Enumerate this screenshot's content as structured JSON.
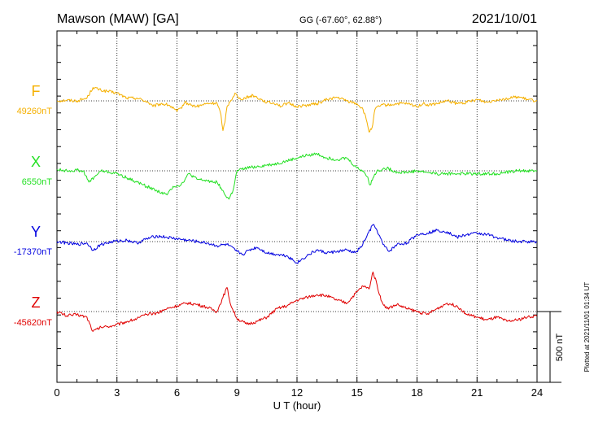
{
  "header": {
    "title": "Mawson (MAW)  [GA]",
    "coords": "GG (-67.60°,  62.88°)",
    "date": "2021/10/01"
  },
  "footer": {
    "plotted": "Plotted at 2021/11/01 01:34 UT"
  },
  "chart_data": {
    "type": "line",
    "title": "Mawson (MAW)  [GA]",
    "xlabel": "U T (hour)",
    "xlim": [
      0,
      24
    ],
    "xticks": [
      0,
      3,
      6,
      9,
      12,
      15,
      18,
      21,
      24
    ],
    "xtick_labels": [
      "0",
      "3",
      "6",
      "9",
      "12",
      "15",
      "18",
      "21",
      "24"
    ],
    "grid": true,
    "scale_bar": {
      "label": "500 nT",
      "value_nT": 500
    },
    "series": [
      {
        "name": "F",
        "baseline_label": "49260nT",
        "baseline_nT": 49260,
        "color": "#f5b000",
        "x": [
          0,
          0.5,
          1,
          1.5,
          1.8,
          2.2,
          3,
          3.5,
          4,
          4.5,
          4.8,
          5.2,
          5.6,
          6,
          6.2,
          6.4,
          6.7,
          7,
          7.5,
          8,
          8.2,
          8.3,
          8.4,
          8.5,
          8.7,
          8.9,
          9.1,
          9.4,
          9.8,
          10.2,
          10.5,
          11,
          11.2,
          11.5,
          12,
          12.5,
          13,
          13.5,
          14,
          14.5,
          15,
          15.3,
          15.5,
          15.6,
          15.75,
          15.9,
          16.2,
          16.6,
          17,
          17.5,
          18,
          18.3,
          18.6,
          19,
          19.5,
          20,
          20.5,
          21,
          21.5,
          22,
          22.5,
          23,
          23.5,
          24
        ],
        "y": [
          0,
          5,
          0,
          20,
          95,
          75,
          55,
          20,
          20,
          -5,
          -40,
          -20,
          -30,
          -75,
          -50,
          -10,
          -30,
          -40,
          -20,
          -15,
          -100,
          -210,
          -150,
          -40,
          5,
          55,
          15,
          20,
          40,
          10,
          -10,
          -20,
          -40,
          -15,
          -40,
          -30,
          -20,
          10,
          25,
          0,
          -20,
          -60,
          -150,
          -220,
          -190,
          -60,
          -30,
          -30,
          -20,
          -20,
          -40,
          -20,
          -30,
          -20,
          0,
          -20,
          -10,
          10,
          -10,
          10,
          15,
          30,
          10,
          0
        ]
      },
      {
        "name": "X",
        "baseline_label": "6550nT",
        "baseline_nT": 6550,
        "color": "#22e022",
        "x": [
          0,
          0.5,
          1,
          1.3,
          1.6,
          1.9,
          2.2,
          3,
          3.5,
          4,
          4.5,
          5,
          5.5,
          5.8,
          6.2,
          6.6,
          7,
          7.5,
          8,
          8.2,
          8.4,
          8.6,
          8.8,
          9,
          9.5,
          10,
          10.5,
          11,
          11.5,
          12,
          12.5,
          13,
          13.5,
          14,
          14.5,
          14.7,
          15,
          15.3,
          15.5,
          15.65,
          15.8,
          16,
          16.5,
          17,
          17.5,
          18,
          18.5,
          19,
          19.5,
          20,
          21,
          22,
          23,
          24
        ],
        "y": [
          10,
          0,
          5,
          0,
          -80,
          -40,
          0,
          -20,
          -50,
          -80,
          -110,
          -140,
          -170,
          -110,
          -100,
          -20,
          -60,
          -70,
          -80,
          -120,
          -170,
          -200,
          -140,
          0,
          20,
          30,
          40,
          50,
          70,
          90,
          110,
          120,
          90,
          80,
          90,
          60,
          20,
          0,
          -40,
          -100,
          -50,
          0,
          20,
          -10,
          -10,
          0,
          -10,
          -20,
          -20,
          -20,
          -20,
          -20,
          0,
          0
        ]
      },
      {
        "name": "Y",
        "baseline_label": "-17370nT",
        "baseline_nT": -17370,
        "color": "#0000e0",
        "x": [
          0,
          0.5,
          1,
          1.5,
          1.8,
          2.2,
          2.8,
          3.5,
          4,
          4.5,
          5,
          5.5,
          6,
          6.5,
          7,
          7.5,
          8,
          8.5,
          9,
          9.3,
          9.6,
          10,
          10.5,
          11,
          11.5,
          12,
          12.5,
          13,
          13.5,
          14,
          14.5,
          14.9,
          15.2,
          15.5,
          15.8,
          16,
          16.3,
          16.6,
          17,
          17.5,
          18,
          18.5,
          19,
          19.5,
          20,
          20.5,
          21,
          21.5,
          22,
          22.5,
          23,
          23.5,
          24
        ],
        "y": [
          0,
          -10,
          -20,
          -10,
          -60,
          -20,
          0,
          10,
          -10,
          20,
          40,
          30,
          20,
          10,
          0,
          -10,
          -30,
          -20,
          -70,
          -90,
          -60,
          -40,
          -80,
          -90,
          -100,
          -150,
          -100,
          -60,
          -80,
          -70,
          -60,
          -80,
          -40,
          40,
          120,
          80,
          -20,
          -70,
          -20,
          -10,
          50,
          60,
          80,
          70,
          30,
          50,
          60,
          50,
          30,
          10,
          0,
          0,
          0
        ]
      },
      {
        "name": "Z",
        "baseline_label": "-45620nT",
        "baseline_nT": -45620,
        "color": "#e00000",
        "x": [
          0,
          0.5,
          1,
          1.5,
          1.8,
          2.2,
          2.8,
          3.5,
          4,
          4.5,
          5,
          5.5,
          6,
          6.5,
          7,
          7.5,
          8,
          8.3,
          8.5,
          8.7,
          9,
          9.5,
          10,
          10.5,
          11,
          11.5,
          12,
          12.5,
          13,
          13.5,
          14,
          14.5,
          15,
          15.3,
          15.6,
          15.8,
          16,
          16.2,
          16.5,
          17,
          17.5,
          18,
          18.5,
          19,
          19.5,
          20,
          20.5,
          21,
          21.5,
          22,
          22.5,
          23,
          23.5,
          24
        ],
        "y": [
          0,
          -30,
          -20,
          -40,
          -140,
          -110,
          -100,
          -70,
          -50,
          -20,
          -10,
          20,
          40,
          60,
          50,
          30,
          0,
          100,
          170,
          40,
          -50,
          -90,
          -70,
          -40,
          20,
          40,
          80,
          100,
          120,
          110,
          80,
          60,
          140,
          180,
          160,
          280,
          190,
          80,
          20,
          50,
          20,
          0,
          -20,
          20,
          60,
          40,
          -20,
          -40,
          -60,
          -40,
          -70,
          -60,
          -40,
          -30
        ]
      }
    ]
  }
}
